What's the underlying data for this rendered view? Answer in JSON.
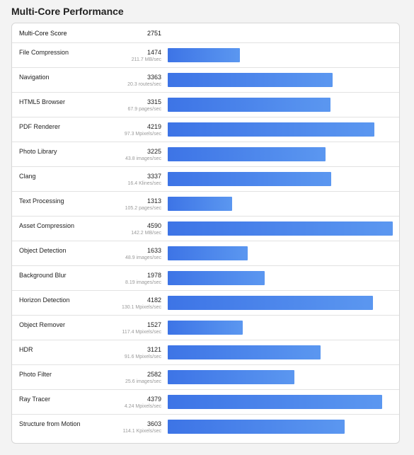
{
  "title": "Multi-Core Performance",
  "summary": {
    "label": "Multi-Core Score",
    "score": "2751"
  },
  "max_score": 4590,
  "bar_color": "#4a86ec",
  "rows": [
    {
      "name": "File Compression",
      "score": "1474",
      "rate": "211.7 MB/sec"
    },
    {
      "name": "Navigation",
      "score": "3363",
      "rate": "20.3 routes/sec"
    },
    {
      "name": "HTML5 Browser",
      "score": "3315",
      "rate": "67.9 pages/sec"
    },
    {
      "name": "PDF Renderer",
      "score": "4219",
      "rate": "97.3 Mpixels/sec"
    },
    {
      "name": "Photo Library",
      "score": "3225",
      "rate": "43.8 images/sec"
    },
    {
      "name": "Clang",
      "score": "3337",
      "rate": "16.4 Klines/sec"
    },
    {
      "name": "Text Processing",
      "score": "1313",
      "rate": "105.2 pages/sec"
    },
    {
      "name": "Asset Compression",
      "score": "4590",
      "rate": "142.2 MB/sec"
    },
    {
      "name": "Object Detection",
      "score": "1633",
      "rate": "48.9 images/sec"
    },
    {
      "name": "Background Blur",
      "score": "1978",
      "rate": "8.19 images/sec"
    },
    {
      "name": "Horizon Detection",
      "score": "4182",
      "rate": "130.1 Mpixels/sec"
    },
    {
      "name": "Object Remover",
      "score": "1527",
      "rate": "117.4 Mpixels/sec"
    },
    {
      "name": "HDR",
      "score": "3121",
      "rate": "91.6 Mpixels/sec"
    },
    {
      "name": "Photo Filter",
      "score": "2582",
      "rate": "25.6 images/sec"
    },
    {
      "name": "Ray Tracer",
      "score": "4379",
      "rate": "4.24 Mpixels/sec"
    },
    {
      "name": "Structure from Motion",
      "score": "3603",
      "rate": "114.1 Kpixels/sec"
    }
  ]
}
